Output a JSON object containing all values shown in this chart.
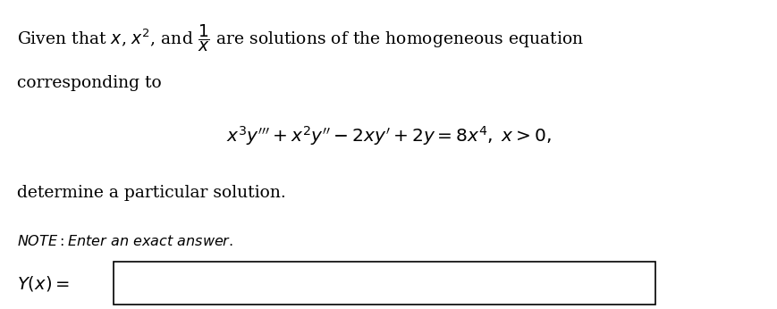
{
  "bg_color": "#ffffff",
  "text_color": "#000000",
  "fig_width": 8.69,
  "fig_height": 3.46,
  "dpi": 100
}
